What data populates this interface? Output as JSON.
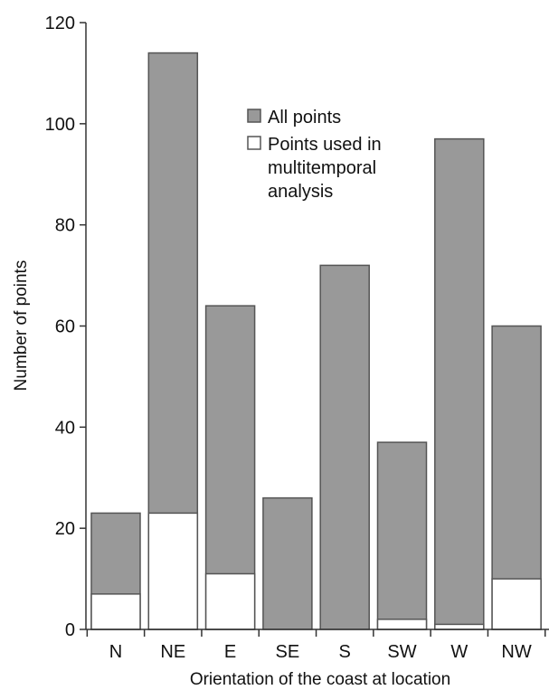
{
  "chart_data": {
    "type": "bar",
    "categories": [
      "N",
      "NE",
      "E",
      "SE",
      "S",
      "SW",
      "W",
      "NW"
    ],
    "series": [
      {
        "name": "All points",
        "values": [
          23,
          114,
          64,
          26,
          72,
          37,
          97,
          60
        ]
      },
      {
        "name": "Points used in multitemporal analysis",
        "values": [
          7,
          23,
          11,
          0,
          0,
          2,
          1,
          10
        ]
      }
    ],
    "title": "",
    "xlabel": "Orientation of the coast at location",
    "ylabel": "Number of points",
    "ylim": [
      0,
      120
    ],
    "yticks": [
      0,
      20,
      40,
      60,
      80,
      100,
      120
    ],
    "grid": false,
    "legend": {
      "placement": "top-center",
      "entries": [
        {
          "lines": [
            "All points"
          ],
          "color": "#999999"
        },
        {
          "lines": [
            "Points used in",
            "multitemporal",
            "analysis"
          ],
          "color": "#ffffff"
        }
      ]
    },
    "colors": {
      "all_points": "#999999",
      "used_points": "#ffffff",
      "edge": "#555555",
      "axis": "#333333"
    }
  }
}
